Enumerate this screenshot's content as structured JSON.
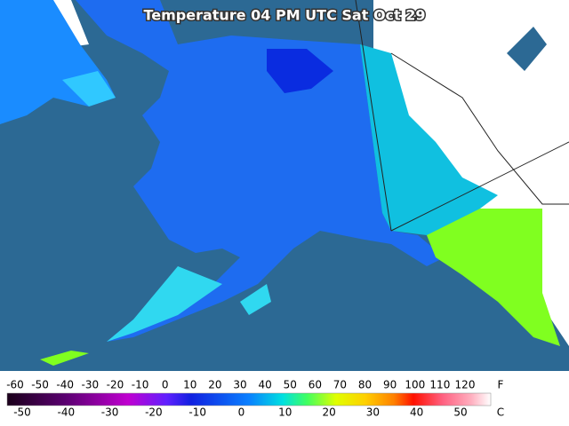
{
  "title": "Temperature 04 PM UTC Sat Oct 29",
  "legend": {
    "fahrenheit_unit": "F",
    "celsius_unit": "C",
    "fahrenheit_labels": [
      -60,
      -50,
      -40,
      -30,
      -20,
      -10,
      0,
      10,
      20,
      30,
      40,
      50,
      60,
      70,
      80,
      90,
      100,
      110,
      120
    ],
    "celsius_labels": [
      -50,
      -40,
      -30,
      -20,
      -10,
      0,
      10,
      20,
      30,
      40,
      50
    ]
  }
}
